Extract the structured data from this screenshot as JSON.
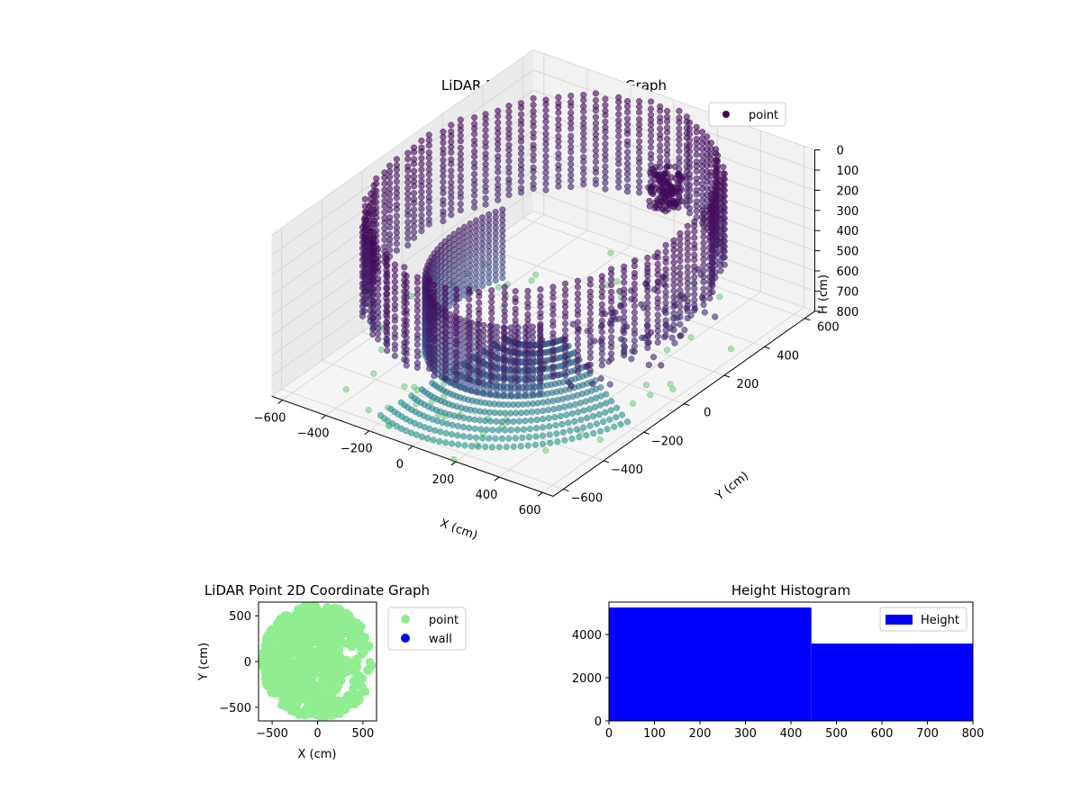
{
  "chart_data": [
    {
      "type": "scatter",
      "dimensions": 3,
      "title": "LiDAR Point 3D Coordinate Graph",
      "xlabel": "X (cm)",
      "ylabel": "Y (cm)",
      "zlabel": "H (cm)",
      "xlim": [
        -650,
        650
      ],
      "ylim": [
        -650,
        650
      ],
      "zlim": [
        800,
        0
      ],
      "x_ticks": [
        -600,
        -400,
        -200,
        0,
        200,
        400,
        600
      ],
      "y_ticks": [
        -600,
        -400,
        -200,
        0,
        200,
        400,
        600
      ],
      "z_ticks": [
        0,
        100,
        200,
        300,
        400,
        500,
        600,
        700,
        800
      ],
      "legend": [
        "point"
      ],
      "legend_position": "top-right",
      "colormap": "viridis",
      "grid": true,
      "structure": {
        "wall_ring": {
          "radius_cm": 600,
          "height_range_cm": [
            0,
            450
          ]
        },
        "inner_arc": {
          "radius_cm": 400,
          "height_range_cm": [
            350,
            700
          ]
        },
        "floor_points": {
          "height_cm": 800,
          "radius_range_cm": [
            0,
            650
          ]
        },
        "object_cluster": {
          "x_cm": 150,
          "y_cm": 450,
          "height_range_cm": [
            150,
            350
          ]
        }
      },
      "colors": {
        "point": "#440154",
        "floor": "#90d0a0"
      }
    },
    {
      "type": "scatter",
      "title": "LiDAR Point 2D Coordinate Graph",
      "xlabel": "X (cm)",
      "ylabel": "Y (cm)",
      "xlim": [
        -650,
        650
      ],
      "ylim": [
        -650,
        650
      ],
      "x_ticks": [
        -500,
        0,
        500
      ],
      "y_ticks": [
        -500,
        0,
        500
      ],
      "series": [
        {
          "name": "point",
          "color": "#90ee90"
        },
        {
          "name": "wall",
          "color": "#0000ff"
        }
      ],
      "legend_position": "outside-right"
    },
    {
      "type": "bar",
      "title": "Height Histogram",
      "xlim": [
        0,
        800
      ],
      "ylim": [
        0,
        5500
      ],
      "x_ticks": [
        0,
        100,
        200,
        300,
        400,
        500,
        600,
        700,
        800
      ],
      "y_ticks": [
        0,
        2000,
        4000
      ],
      "bins": [
        [
          0,
          445
        ],
        [
          445,
          800
        ]
      ],
      "values": [
        5250,
        3580
      ],
      "series": [
        {
          "name": "Height",
          "color": "#0000ff"
        }
      ],
      "legend_position": "top-right"
    }
  ]
}
